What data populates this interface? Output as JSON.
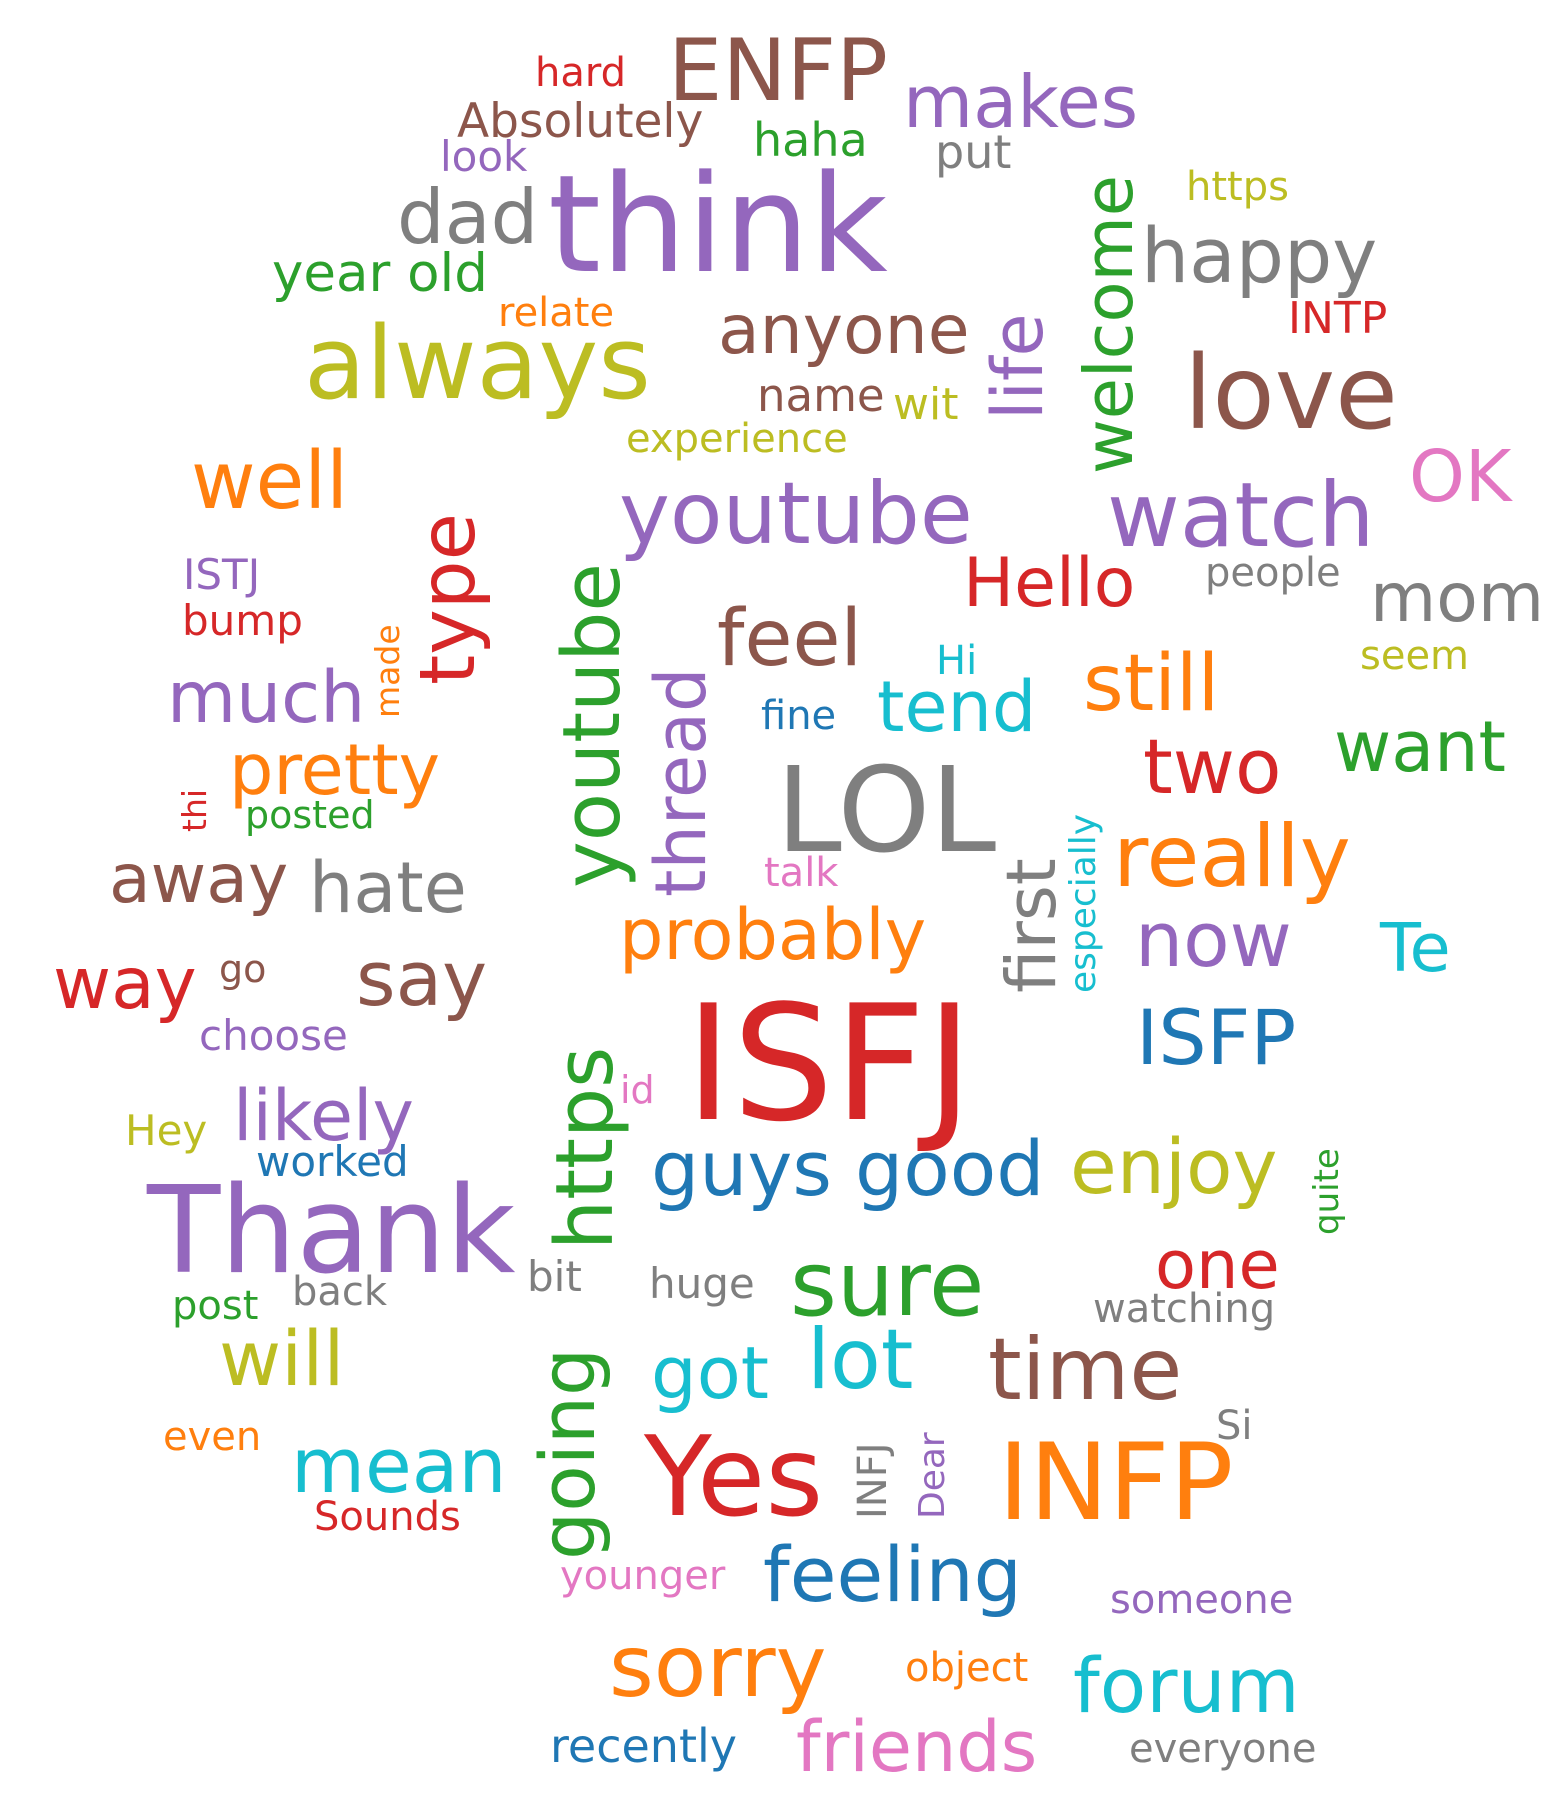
{
  "palette": {
    "red": "#d62728",
    "purple": "#9467bd",
    "brown": "#8c564b",
    "gray": "#7f7f7f",
    "olive": "#bcbd22",
    "green": "#2ca02c",
    "orange": "#ff7f0e",
    "blue": "#1f77b4",
    "cyan": "#17becf",
    "pink": "#e377c2"
  },
  "words": [
    {
      "text": "hard",
      "color": "red"
    },
    {
      "text": "ENFP",
      "color": "brown"
    },
    {
      "text": "Absolutely",
      "color": "brown"
    },
    {
      "text": "makes",
      "color": "purple"
    },
    {
      "text": "look",
      "color": "purple"
    },
    {
      "text": "haha",
      "color": "green"
    },
    {
      "text": "put",
      "color": "gray"
    },
    {
      "text": "think",
      "color": "purple"
    },
    {
      "text": "dad",
      "color": "gray"
    },
    {
      "text": "https",
      "color": "olive"
    },
    {
      "text": "welcome",
      "color": "green"
    },
    {
      "text": "life",
      "color": "purple"
    },
    {
      "text": "happy",
      "color": "gray"
    },
    {
      "text": "year old",
      "color": "green"
    },
    {
      "text": "relate",
      "color": "orange"
    },
    {
      "text": "INTP",
      "color": "red"
    },
    {
      "text": "always",
      "color": "olive"
    },
    {
      "text": "anyone",
      "color": "brown"
    },
    {
      "text": "love",
      "color": "brown"
    },
    {
      "text": "name",
      "color": "brown"
    },
    {
      "text": "wit",
      "color": "olive"
    },
    {
      "text": "experience",
      "color": "olive"
    },
    {
      "text": "well",
      "color": "orange"
    },
    {
      "text": "type",
      "color": "red"
    },
    {
      "text": "youtube",
      "color": "purple"
    },
    {
      "text": "watch",
      "color": "purple"
    },
    {
      "text": "OK",
      "color": "pink"
    },
    {
      "text": "youtube",
      "color": "green"
    },
    {
      "text": "Hello",
      "color": "red"
    },
    {
      "text": "people",
      "color": "gray"
    },
    {
      "text": "ISTJ",
      "color": "purple"
    },
    {
      "text": "mom",
      "color": "gray"
    },
    {
      "text": "bump",
      "color": "red"
    },
    {
      "text": "feel",
      "color": "brown"
    },
    {
      "text": "thread",
      "color": "purple"
    },
    {
      "text": "Hi",
      "color": "cyan"
    },
    {
      "text": "seem",
      "color": "olive"
    },
    {
      "text": "made",
      "color": "orange"
    },
    {
      "text": "much",
      "color": "purple"
    },
    {
      "text": "still",
      "color": "orange"
    },
    {
      "text": "tend",
      "color": "cyan"
    },
    {
      "text": "fine",
      "color": "blue"
    },
    {
      "text": "want",
      "color": "green"
    },
    {
      "text": "especially",
      "color": "cyan"
    },
    {
      "text": "pretty",
      "color": "orange"
    },
    {
      "text": "two",
      "color": "red"
    },
    {
      "text": "thi",
      "color": "red"
    },
    {
      "text": "LOL",
      "color": "gray"
    },
    {
      "text": "first",
      "color": "gray"
    },
    {
      "text": "posted",
      "color": "green"
    },
    {
      "text": "really",
      "color": "orange"
    },
    {
      "text": "away",
      "color": "brown"
    },
    {
      "text": "hate",
      "color": "gray"
    },
    {
      "text": "talk",
      "color": "pink"
    },
    {
      "text": "probably",
      "color": "orange"
    },
    {
      "text": "now",
      "color": "purple"
    },
    {
      "text": "Te",
      "color": "cyan"
    },
    {
      "text": "way",
      "color": "red"
    },
    {
      "text": "go",
      "color": "brown"
    },
    {
      "text": "say",
      "color": "brown"
    },
    {
      "text": "https",
      "color": "green"
    },
    {
      "text": "ISFJ",
      "color": "red"
    },
    {
      "text": "ISFP",
      "color": "blue"
    },
    {
      "text": "choose",
      "color": "purple"
    },
    {
      "text": "id",
      "color": "pink"
    },
    {
      "text": "likely",
      "color": "purple"
    },
    {
      "text": "Hey",
      "color": "olive"
    },
    {
      "text": "worked",
      "color": "blue"
    },
    {
      "text": "guys",
      "color": "blue"
    },
    {
      "text": "good",
      "color": "blue"
    },
    {
      "text": "enjoy",
      "color": "olive"
    },
    {
      "text": "quite",
      "color": "green"
    },
    {
      "text": "Thank",
      "color": "purple"
    },
    {
      "text": "one",
      "color": "red"
    },
    {
      "text": "bit",
      "color": "gray"
    },
    {
      "text": "huge",
      "color": "gray"
    },
    {
      "text": "sure",
      "color": "green"
    },
    {
      "text": "post",
      "color": "green"
    },
    {
      "text": "back",
      "color": "gray"
    },
    {
      "text": "watching",
      "color": "gray"
    },
    {
      "text": "will",
      "color": "olive"
    },
    {
      "text": "going",
      "color": "green"
    },
    {
      "text": "got",
      "color": "cyan"
    },
    {
      "text": "lot",
      "color": "cyan"
    },
    {
      "text": "time",
      "color": "brown"
    },
    {
      "text": "Si",
      "color": "gray"
    },
    {
      "text": "even",
      "color": "orange"
    },
    {
      "text": "mean",
      "color": "cyan"
    },
    {
      "text": "Yes",
      "color": "red"
    },
    {
      "text": "INFJ",
      "color": "gray"
    },
    {
      "text": "Dear",
      "color": "purple"
    },
    {
      "text": "INFP",
      "color": "orange"
    },
    {
      "text": "Sounds",
      "color": "red"
    },
    {
      "text": "younger",
      "color": "pink"
    },
    {
      "text": "feeling",
      "color": "blue"
    },
    {
      "text": "someone",
      "color": "purple"
    },
    {
      "text": "sorry",
      "color": "orange"
    },
    {
      "text": "object",
      "color": "orange"
    },
    {
      "text": "forum",
      "color": "cyan"
    },
    {
      "text": "recently",
      "color": "blue"
    },
    {
      "text": "friends",
      "color": "pink"
    },
    {
      "text": "everyone",
      "color": "gray"
    }
  ]
}
